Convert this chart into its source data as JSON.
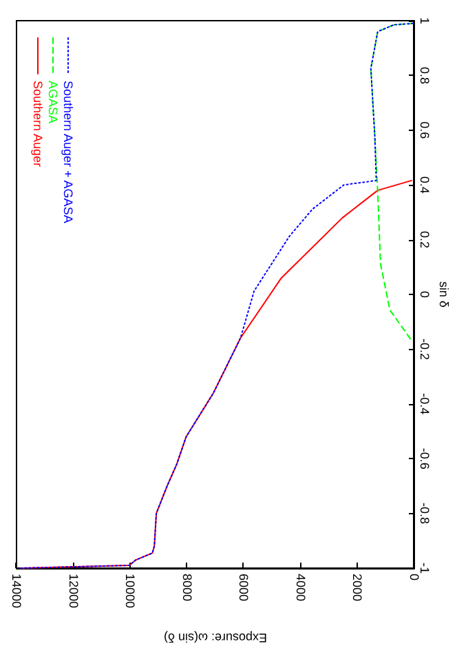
{
  "chart_data": {
    "type": "line",
    "xlabel": "Exposure: ω(sin δ)",
    "ylabel": "sin δ",
    "xlim": [
      14000,
      0
    ],
    "ylim": [
      -1,
      1
    ],
    "xticks": [
      14000,
      12000,
      10000,
      8000,
      6000,
      4000,
      2000,
      0
    ],
    "yticks": [
      -1,
      -0.8,
      -0.6,
      -0.4,
      -0.2,
      0,
      0.2,
      0.4,
      0.6,
      0.8,
      1
    ],
    "grid": false,
    "legend": "top left",
    "marker": "none",
    "series": [
      {
        "name": "Southern Auger",
        "color": "#ff0000",
        "line_style": "solid",
        "x": [
          13850,
          10030,
          9800,
          9220,
          9150,
          9080,
          8700,
          8360,
          8030,
          7070,
          6120,
          4680,
          2530,
          1290,
          100
        ],
        "values": [
          -1,
          -0.99,
          -0.97,
          -0.945,
          -0.92,
          -0.8,
          -0.7,
          -0.62,
          -0.52,
          -0.36,
          -0.16,
          0.06,
          0.28,
          0.38,
          0.416
        ]
      },
      {
        "name": "AGASA",
        "color": "#00ff00",
        "line_style": "dashed",
        "x": [
          140,
          860,
          1190,
          1290,
          1390,
          1530,
          1290,
          720,
          50
        ],
        "values": [
          -0.162,
          -0.057,
          0.112,
          0.377,
          0.576,
          0.825,
          0.96,
          0.985,
          0.99
        ]
      },
      {
        "name": "Southern Auger + AGASA",
        "color": "#0000ff",
        "line_style": "dotted",
        "x": [
          13850,
          10030,
          9800,
          9220,
          9150,
          9080,
          8700,
          8360,
          8030,
          7070,
          6120,
          5970,
          5640,
          4400,
          3580,
          2480,
          1340,
          1390,
          1530,
          1290,
          720,
          50
        ],
        "values": [
          -1,
          -0.99,
          -0.97,
          -0.945,
          -0.92,
          -0.8,
          -0.7,
          -0.62,
          -0.52,
          -0.36,
          -0.16,
          -0.107,
          0.012,
          0.212,
          0.312,
          0.4,
          0.416,
          0.576,
          0.825,
          0.96,
          0.985,
          0.99
        ]
      }
    ]
  }
}
